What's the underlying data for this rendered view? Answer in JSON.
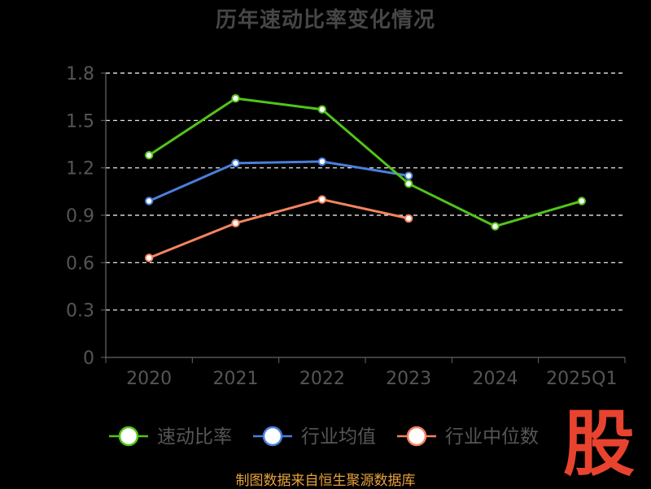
{
  "title": "历年速动比率变化情况",
  "source": "制图数据来自恒生聚源数据库",
  "watermark": "股",
  "colors": {
    "background": "#000000",
    "axis": "#666666",
    "grid": "#ffffff",
    "tick_text": "#555555",
    "title_text": "#464646",
    "source_text": "#e6a23c",
    "watermark": "#e8432e"
  },
  "chart_data": {
    "type": "line",
    "title": "历年速动比率变化情况",
    "categories": [
      "2020",
      "2021",
      "2022",
      "2023",
      "2024",
      "2025Q1"
    ],
    "y_ticks": [
      "0",
      "0.3",
      "0.6",
      "0.9",
      "1.2",
      "1.5",
      "1.8"
    ],
    "ylim": [
      0,
      1.8
    ],
    "grid": true,
    "grid_style": "dashed",
    "legend_position": "bottom",
    "series": [
      {
        "name": "速动比率",
        "color": "#52c41a",
        "values": [
          1.28,
          1.64,
          1.57,
          1.1,
          0.83,
          0.99
        ]
      },
      {
        "name": "行业均值",
        "color": "#4a7fdc",
        "values": [
          0.99,
          1.23,
          1.24,
          1.15,
          null,
          null
        ]
      },
      {
        "name": "行业中位数",
        "color": "#f4845f",
        "values": [
          0.63,
          0.85,
          1.0,
          0.88,
          null,
          null
        ]
      }
    ]
  }
}
